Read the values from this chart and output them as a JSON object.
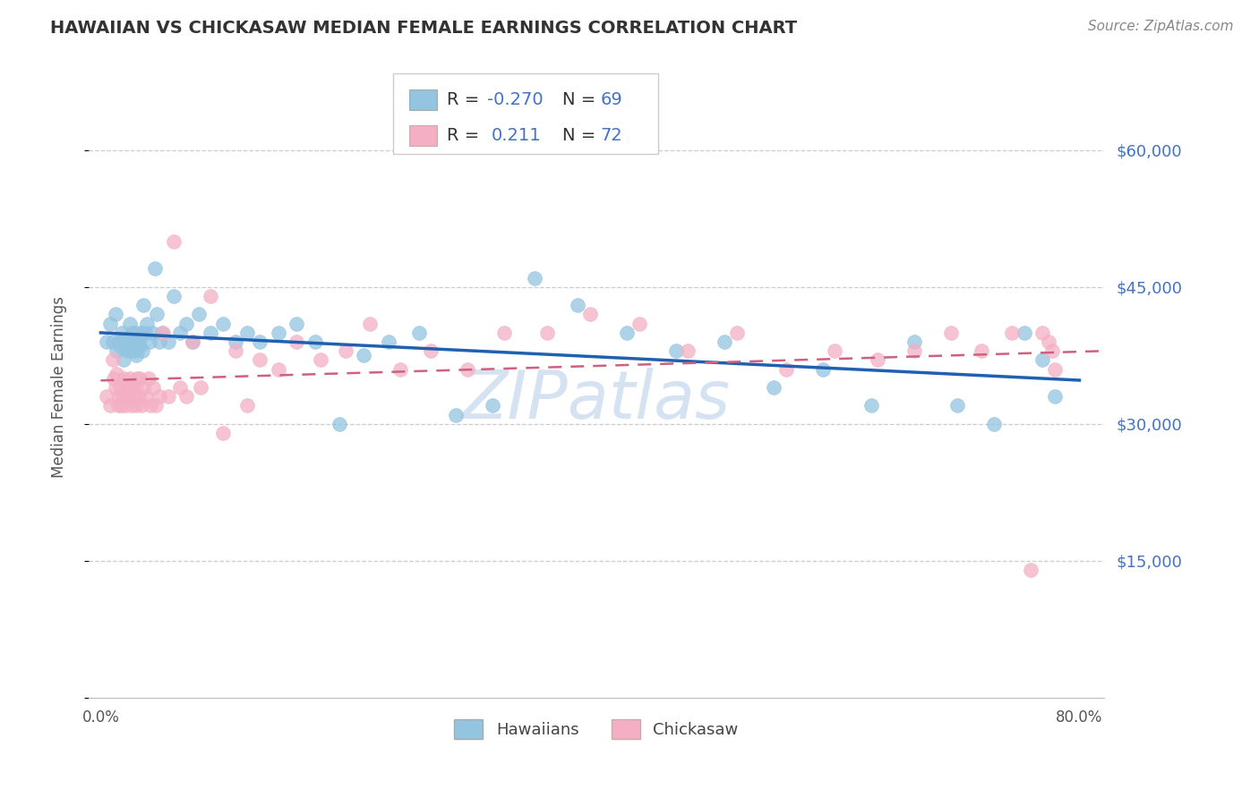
{
  "title": "HAWAIIAN VS CHICKASAW MEDIAN FEMALE EARNINGS CORRELATION CHART",
  "source_text": "Source: ZipAtlas.com",
  "ylabel": "Median Female Earnings",
  "watermark": "ZIPatlas",
  "xlim": [
    -0.01,
    0.82
  ],
  "ylim": [
    0,
    68000
  ],
  "yticks": [
    0,
    15000,
    30000,
    45000,
    60000
  ],
  "ytick_labels": [
    "",
    "$15,000",
    "$30,000",
    "$45,000",
    "$60,000"
  ],
  "xtick_positions": [
    0.0,
    0.1,
    0.2,
    0.3,
    0.4,
    0.5,
    0.6,
    0.7,
    0.8
  ],
  "xtick_labels": [
    "0.0%",
    "",
    "",
    "",
    "",
    "",
    "",
    "",
    "80.0%"
  ],
  "legend_R1": "-0.270",
  "legend_N1": "69",
  "legend_R2": "0.211",
  "legend_N2": "72",
  "hawaiian_color": "#93c4e0",
  "chickasaw_color": "#f4afc4",
  "trend_hawaiian_color": "#2060b0",
  "trend_chickasaw_color": "#d06080",
  "axis_color": "#4472c4",
  "grid_color": "#cccccc",
  "background_color": "#ffffff",
  "hawaiian_x": [
    0.005,
    0.008,
    0.01,
    0.012,
    0.013,
    0.015,
    0.016,
    0.017,
    0.018,
    0.019,
    0.02,
    0.021,
    0.022,
    0.023,
    0.024,
    0.025,
    0.026,
    0.027,
    0.028,
    0.029,
    0.03,
    0.031,
    0.032,
    0.033,
    0.034,
    0.035,
    0.036,
    0.038,
    0.04,
    0.042,
    0.044,
    0.046,
    0.048,
    0.05,
    0.055,
    0.06,
    0.065,
    0.07,
    0.075,
    0.08,
    0.09,
    0.1,
    0.11,
    0.12,
    0.13,
    0.145,
    0.16,
    0.175,
    0.195,
    0.215,
    0.235,
    0.26,
    0.29,
    0.32,
    0.355,
    0.39,
    0.43,
    0.47,
    0.51,
    0.55,
    0.59,
    0.63,
    0.665,
    0.7,
    0.73,
    0.755,
    0.77,
    0.78
  ],
  "hawaiian_y": [
    39000,
    41000,
    39000,
    42000,
    38000,
    39000,
    38500,
    40000,
    39000,
    37000,
    38500,
    39000,
    38000,
    39500,
    41000,
    38000,
    40000,
    39000,
    38000,
    37500,
    40000,
    39000,
    38500,
    40000,
    38000,
    43000,
    40000,
    41000,
    39000,
    40000,
    47000,
    42000,
    39000,
    40000,
    39000,
    44000,
    40000,
    41000,
    39000,
    42000,
    40000,
    41000,
    39000,
    40000,
    39000,
    40000,
    41000,
    39000,
    30000,
    37500,
    39000,
    40000,
    31000,
    32000,
    46000,
    43000,
    40000,
    38000,
    39000,
    34000,
    36000,
    32000,
    39000,
    32000,
    30000,
    40000,
    37000,
    33000
  ],
  "chickasaw_x": [
    0.005,
    0.008,
    0.01,
    0.011,
    0.012,
    0.013,
    0.014,
    0.015,
    0.016,
    0.017,
    0.018,
    0.019,
    0.02,
    0.021,
    0.022,
    0.023,
    0.024,
    0.025,
    0.026,
    0.027,
    0.028,
    0.029,
    0.03,
    0.031,
    0.032,
    0.033,
    0.035,
    0.037,
    0.039,
    0.041,
    0.043,
    0.045,
    0.048,
    0.051,
    0.055,
    0.06,
    0.065,
    0.07,
    0.075,
    0.082,
    0.09,
    0.1,
    0.11,
    0.12,
    0.13,
    0.145,
    0.16,
    0.18,
    0.2,
    0.22,
    0.245,
    0.27,
    0.3,
    0.33,
    0.365,
    0.4,
    0.44,
    0.48,
    0.52,
    0.56,
    0.6,
    0.635,
    0.665,
    0.695,
    0.72,
    0.745,
    0.76,
    0.77,
    0.775,
    0.778,
    0.78
  ],
  "chickasaw_y": [
    33000,
    32000,
    37000,
    35000,
    34000,
    35500,
    32000,
    33000,
    34000,
    32000,
    33000,
    35000,
    32000,
    33000,
    34000,
    33500,
    35000,
    32000,
    34000,
    33000,
    34000,
    32000,
    35000,
    33000,
    35000,
    32000,
    34000,
    33000,
    35000,
    32000,
    34000,
    32000,
    33000,
    40000,
    33000,
    50000,
    34000,
    33000,
    39000,
    34000,
    44000,
    29000,
    38000,
    32000,
    37000,
    36000,
    39000,
    37000,
    38000,
    41000,
    36000,
    38000,
    36000,
    40000,
    40000,
    42000,
    41000,
    38000,
    40000,
    36000,
    38000,
    37000,
    38000,
    40000,
    38000,
    40000,
    14000,
    40000,
    39000,
    38000,
    36000
  ]
}
